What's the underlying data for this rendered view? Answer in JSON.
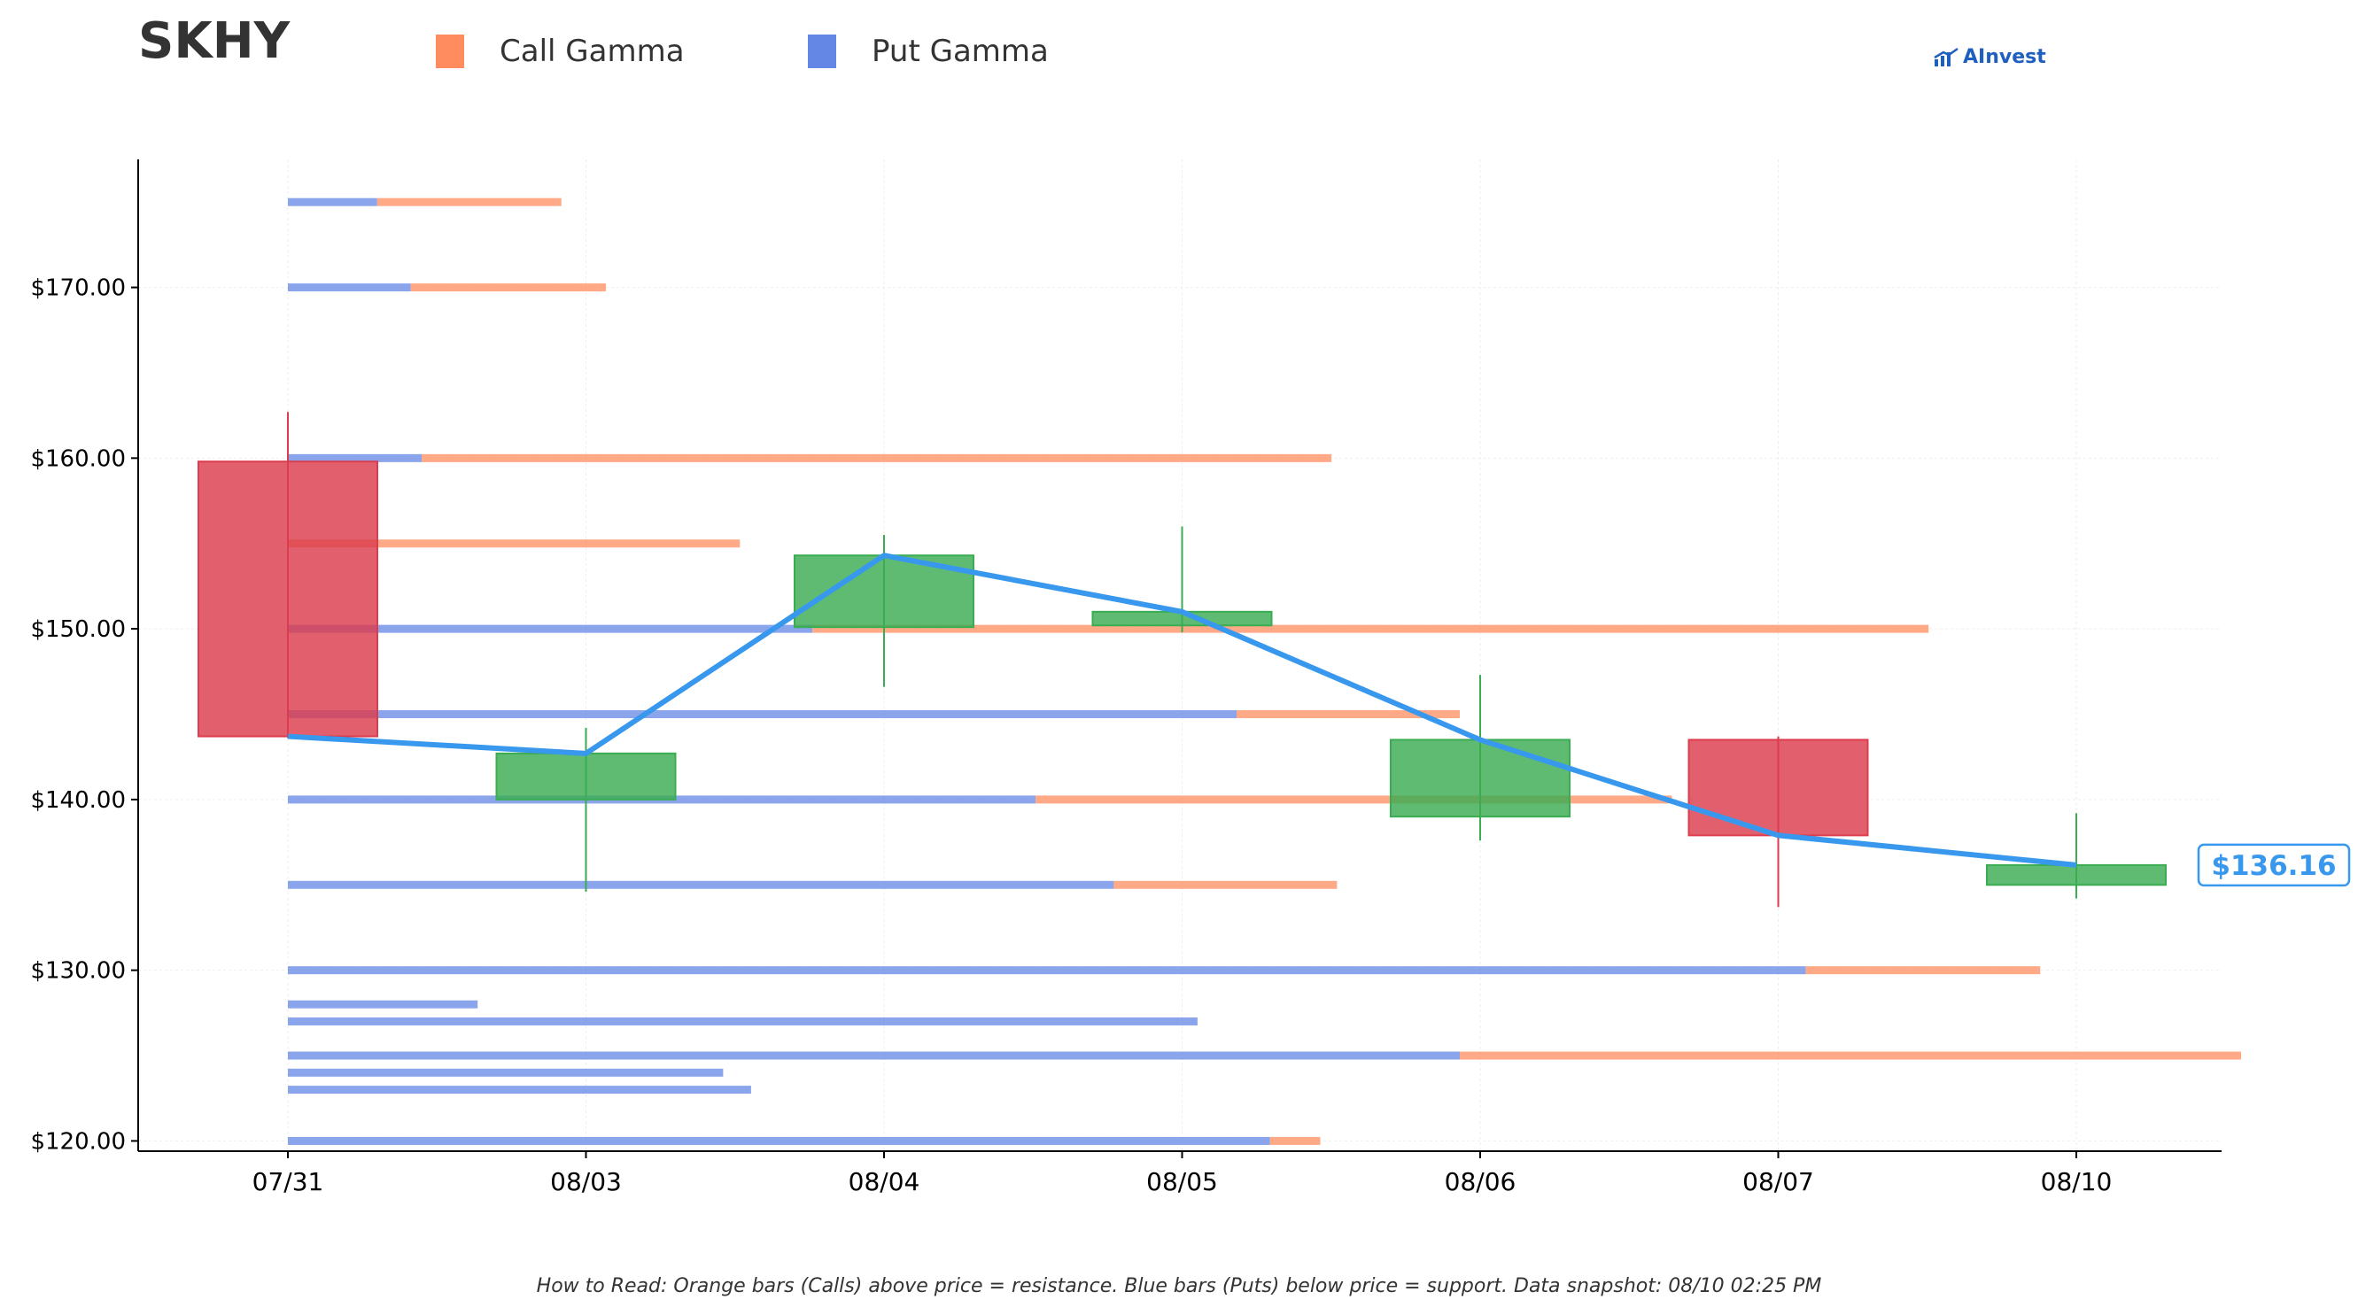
{
  "header": {
    "ticker": "SKHY",
    "legend": [
      {
        "label": "Call Gamma",
        "color": "#ff8c5f"
      },
      {
        "label": "Put Gamma",
        "color": "#6487e6"
      }
    ],
    "brand": "AInvest",
    "brand_icon": "chart-arrow-icon"
  },
  "footer": {
    "note": "How to Read: Orange bars (Calls) above price = resistance. Blue bars (Puts) below price = support. Data snapshot: 08/10 02:25 PM"
  },
  "chart_data": {
    "type": "candlestick",
    "categories": [
      "07/31",
      "08/03",
      "08/04",
      "08/05",
      "08/06",
      "08/07",
      "08/10"
    ],
    "y_ticks": [
      120,
      130,
      140,
      150,
      160,
      170
    ],
    "y_tick_labels": [
      "$120.00",
      "$130.00",
      "$140.00",
      "$150.00",
      "$160.00",
      "$170.00"
    ],
    "ylim": [
      119.4,
      177.5
    ],
    "grid": true,
    "current_price_label": "$136.16",
    "current_price": 136.16,
    "candles": [
      {
        "date": "07/31",
        "open": 159.8,
        "high": 162.7,
        "low": 143.6,
        "close": 143.7
      },
      {
        "date": "08/03",
        "open": 140.0,
        "high": 144.2,
        "low": 134.6,
        "close": 142.7
      },
      {
        "date": "08/04",
        "open": 150.1,
        "high": 155.5,
        "low": 146.6,
        "close": 154.3
      },
      {
        "date": "08/05",
        "open": 150.2,
        "high": 156.0,
        "low": 149.8,
        "close": 151.0
      },
      {
        "date": "08/06",
        "open": 139.0,
        "high": 147.3,
        "low": 137.6,
        "close": 143.5
      },
      {
        "date": "08/07",
        "open": 143.5,
        "high": 143.7,
        "low": 133.7,
        "close": 137.9
      },
      {
        "date": "08/10",
        "open": 135.0,
        "high": 139.2,
        "low": 134.2,
        "close": 136.16
      }
    ],
    "candle_colors": {
      "up": "#3aac52",
      "down": "#dc3c4d"
    },
    "price_line_color": "#3898ee",
    "gamma_colors": {
      "call": "#ff8c5f",
      "put": "#6487e6"
    },
    "gamma": [
      {
        "strike": 175,
        "put": 0.16,
        "call": 0.33
      },
      {
        "strike": 170,
        "put": 0.22,
        "call": 0.35
      },
      {
        "strike": 160,
        "put": 0.24,
        "call": 1.63
      },
      {
        "strike": 155,
        "put": 0.0,
        "call": 0.81
      },
      {
        "strike": 150,
        "put": 0.94,
        "call": 2.0
      },
      {
        "strike": 145,
        "put": 1.7,
        "call": 0.4
      },
      {
        "strike": 140,
        "put": 1.34,
        "call": 1.14
      },
      {
        "strike": 135,
        "put": 1.48,
        "call": 0.4
      },
      {
        "strike": 130,
        "put": 2.72,
        "call": 0.42
      },
      {
        "strike": 128,
        "put": 0.34,
        "call": 0.0
      },
      {
        "strike": 127,
        "put": 1.63,
        "call": 0.0
      },
      {
        "strike": 125,
        "put": 2.1,
        "call": 1.4
      },
      {
        "strike": 124,
        "put": 0.78,
        "call": 0.0
      },
      {
        "strike": 123,
        "put": 0.83,
        "call": 0.0
      },
      {
        "strike": 120,
        "put": 1.76,
        "call": 0.09
      }
    ]
  }
}
